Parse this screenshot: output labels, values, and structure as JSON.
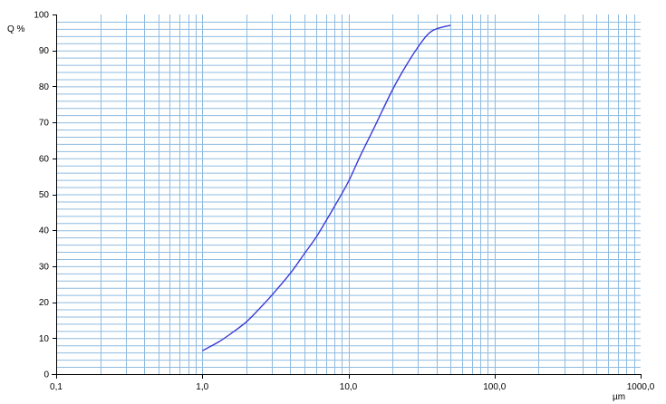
{
  "chart_data": {
    "type": "line",
    "title": "",
    "xlabel": "µm",
    "ylabel": "Q %",
    "xscale": "log",
    "xlim": [
      0.1,
      1000
    ],
    "ylim": [
      0,
      100
    ],
    "grid": true,
    "x_ticks": [
      0.1,
      1,
      10,
      100,
      1000
    ],
    "x_tick_labels": [
      "0,1",
      "1,0",
      "10,0",
      "100,0",
      "1000,0"
    ],
    "y_ticks": [
      0,
      10,
      20,
      30,
      40,
      50,
      60,
      70,
      80,
      90,
      100
    ],
    "y_tick_labels": [
      "0",
      "10",
      "20",
      "30",
      "40",
      "50",
      "60",
      "70",
      "80",
      "90",
      "100"
    ],
    "series": [
      {
        "color": "#3b3bd6",
        "points": [
          [
            1.0,
            6.5
          ],
          [
            1.3,
            9.0
          ],
          [
            1.6,
            11.5
          ],
          [
            2.0,
            14.5
          ],
          [
            2.5,
            18.5
          ],
          [
            3.0,
            22.0
          ],
          [
            4.0,
            28.0
          ],
          [
            5.0,
            33.5
          ],
          [
            6.0,
            38.0
          ],
          [
            7.0,
            42.5
          ],
          [
            8.0,
            46.5
          ],
          [
            10.0,
            53.5
          ],
          [
            12.0,
            60.5
          ],
          [
            15.0,
            68.5
          ],
          [
            20.0,
            79.0
          ],
          [
            25.0,
            86.0
          ],
          [
            30.0,
            91.0
          ],
          [
            35.0,
            94.5
          ],
          [
            40.0,
            96.0
          ],
          [
            50.0,
            97.0
          ]
        ]
      }
    ]
  },
  "colors": {
    "grid": "#8fbbe0",
    "axis": "#000000",
    "line": "#3b3bd6"
  }
}
